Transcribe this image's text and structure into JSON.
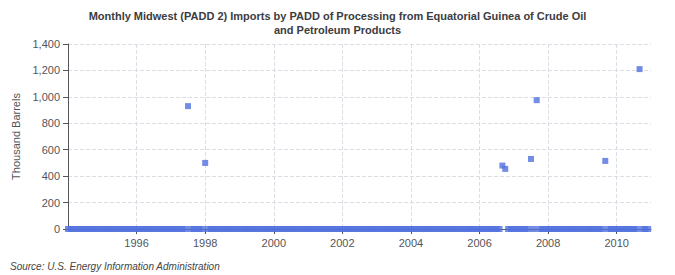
{
  "chart_data": {
    "type": "scatter",
    "title": "Monthly Midwest (PADD 2) Imports by PADD of Processing from Equatorial Guinea of Crude Oil\nand Petroleum Products",
    "ylabel": "Thousand Barrels",
    "source": "Source: U.S. Energy Information Administration",
    "marker": "square",
    "grid": true,
    "x": [
      1994.0,
      1994.083,
      1994.167,
      1994.25,
      1994.333,
      1994.417,
      1994.5,
      1994.583,
      1994.667,
      1994.75,
      1994.833,
      1994.917,
      1995.0,
      1995.083,
      1995.167,
      1995.25,
      1995.333,
      1995.417,
      1995.5,
      1995.583,
      1995.667,
      1995.75,
      1995.833,
      1995.917,
      1996.0,
      1996.083,
      1996.167,
      1996.25,
      1996.333,
      1996.417,
      1996.5,
      1996.583,
      1996.667,
      1996.75,
      1996.833,
      1996.917,
      1997.0,
      1997.083,
      1997.167,
      1997.25,
      1997.333,
      1997.417,
      1997.5,
      1997.583,
      1997.667,
      1997.75,
      1997.833,
      1997.917,
      1998.0,
      1998.083,
      1998.167,
      1998.25,
      1998.333,
      1998.417,
      1998.5,
      1998.583,
      1998.667,
      1998.75,
      1998.833,
      1998.917,
      1999.0,
      1999.083,
      1999.167,
      1999.25,
      1999.333,
      1999.417,
      1999.5,
      1999.583,
      1999.667,
      1999.75,
      1999.833,
      1999.917,
      2000.0,
      2000.083,
      2000.167,
      2000.25,
      2000.333,
      2000.417,
      2000.5,
      2000.583,
      2000.667,
      2000.75,
      2000.833,
      2000.917,
      2001.0,
      2001.083,
      2001.167,
      2001.25,
      2001.333,
      2001.417,
      2001.5,
      2001.583,
      2001.667,
      2001.75,
      2001.833,
      2001.917,
      2002.0,
      2002.083,
      2002.167,
      2002.25,
      2002.333,
      2002.417,
      2002.5,
      2002.583,
      2002.667,
      2002.75,
      2002.833,
      2002.917,
      2003.0,
      2003.083,
      2003.167,
      2003.25,
      2003.333,
      2003.417,
      2003.5,
      2003.583,
      2003.667,
      2003.75,
      2003.833,
      2003.917,
      2004.0,
      2004.083,
      2004.167,
      2004.25,
      2004.333,
      2004.417,
      2004.5,
      2004.583,
      2004.667,
      2004.75,
      2004.833,
      2004.917,
      2005.0,
      2005.083,
      2005.167,
      2005.25,
      2005.333,
      2005.417,
      2005.5,
      2005.583,
      2005.667,
      2005.75,
      2005.833,
      2005.917,
      2006.0,
      2006.083,
      2006.167,
      2006.25,
      2006.333,
      2006.417,
      2006.5,
      2006.583,
      2006.667,
      2006.75,
      2006.833,
      2006.917,
      2007.0,
      2007.083,
      2007.167,
      2007.25,
      2007.333,
      2007.417,
      2007.5,
      2007.583,
      2007.667,
      2007.75,
      2007.833,
      2007.917,
      2008.0,
      2008.083,
      2008.167,
      2008.25,
      2008.333,
      2008.417,
      2008.5,
      2008.583,
      2008.667,
      2008.75,
      2008.833,
      2008.917,
      2009.0,
      2009.083,
      2009.167,
      2009.25,
      2009.333,
      2009.417,
      2009.5,
      2009.583,
      2009.667,
      2009.75,
      2009.833,
      2009.917,
      2010.0,
      2010.083,
      2010.167,
      2010.25,
      2010.333,
      2010.417,
      2010.5,
      2010.583,
      2010.667,
      2010.75,
      2010.833,
      2010.917
    ],
    "values": [
      0,
      0,
      0,
      0,
      0,
      0,
      0,
      0,
      0,
      0,
      0,
      0,
      0,
      0,
      0,
      0,
      0,
      0,
      0,
      0,
      0,
      0,
      0,
      0,
      0,
      0,
      0,
      0,
      0,
      0,
      0,
      0,
      0,
      0,
      0,
      0,
      0,
      0,
      0,
      0,
      0,
      0,
      930,
      0,
      0,
      0,
      0,
      0,
      500,
      0,
      0,
      0,
      0,
      0,
      0,
      0,
      0,
      0,
      0,
      0,
      0,
      0,
      0,
      0,
      0,
      0,
      0,
      0,
      0,
      0,
      0,
      0,
      0,
      0,
      0,
      0,
      0,
      0,
      0,
      0,
      0,
      0,
      0,
      0,
      0,
      0,
      0,
      0,
      0,
      0,
      0,
      0,
      0,
      0,
      0,
      0,
      0,
      0,
      0,
      0,
      0,
      0,
      0,
      0,
      0,
      0,
      0,
      0,
      0,
      0,
      0,
      0,
      0,
      0,
      0,
      0,
      0,
      0,
      0,
      0,
      0,
      0,
      0,
      0,
      0,
      0,
      0,
      0,
      0,
      0,
      0,
      0,
      0,
      0,
      0,
      0,
      0,
      0,
      0,
      0,
      0,
      0,
      0,
      0,
      0,
      0,
      0,
      0,
      0,
      0,
      0,
      0,
      480,
      455,
      0,
      0,
      0,
      0,
      0,
      0,
      0,
      0,
      530,
      0,
      975,
      0,
      0,
      0,
      0,
      0,
      0,
      0,
      0,
      0,
      0,
      0,
      0,
      0,
      0,
      0,
      0,
      0,
      0,
      0,
      0,
      0,
      0,
      0,
      515,
      0,
      0,
      0,
      0,
      0,
      0,
      0,
      0,
      0,
      0,
      0,
      1210,
      0,
      0,
      0
    ],
    "xlim": [
      1994.0,
      2011.0
    ],
    "xticks": [
      1996,
      1998,
      2000,
      2002,
      2004,
      2006,
      2008,
      2010
    ],
    "ylim": [
      0,
      1400
    ],
    "yticks": [
      0,
      200,
      400,
      600,
      800,
      {
        "value": 1000,
        "label": "1,000"
      },
      {
        "value": 1200,
        "label": "1,200"
      },
      {
        "value": 1400,
        "label": "1,400"
      }
    ]
  }
}
